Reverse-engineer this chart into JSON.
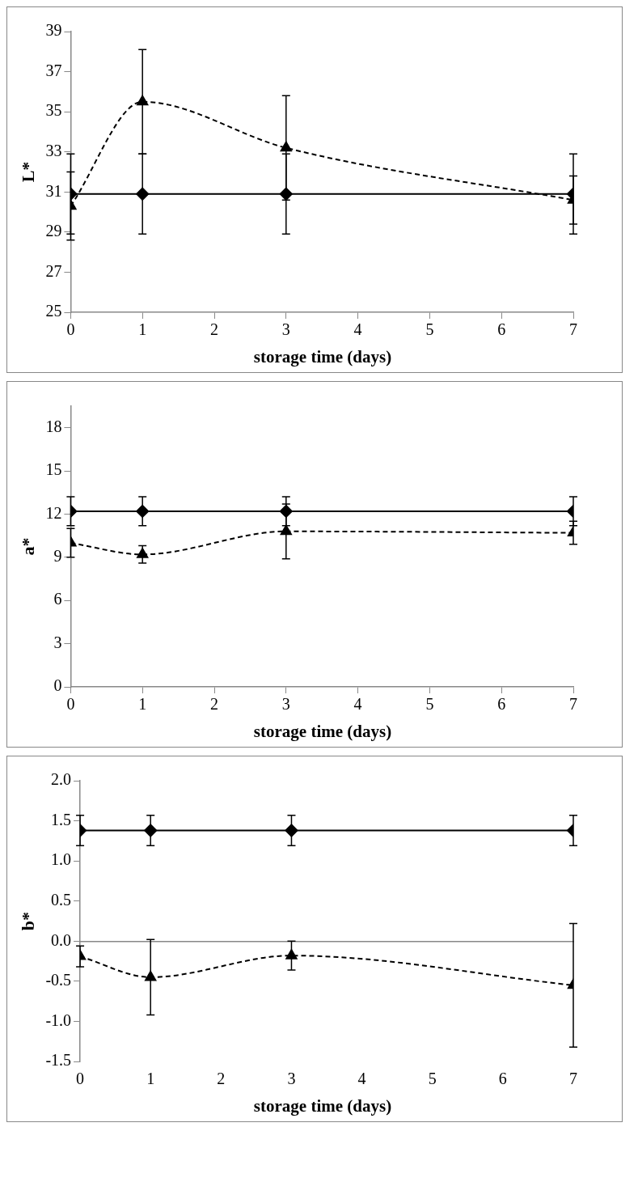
{
  "chart_data": [
    {
      "type": "line",
      "x": [
        0,
        1,
        3,
        7
      ],
      "xlabel": "storage time (days)",
      "ylabel": "L*",
      "xlim": [
        0,
        7
      ],
      "xticks": [
        0,
        1,
        2,
        3,
        4,
        5,
        6,
        7
      ],
      "ylim": [
        25,
        39
      ],
      "yticks": [
        25,
        27,
        29,
        31,
        33,
        35,
        37,
        39
      ],
      "grid": false,
      "legend": false,
      "series": [
        {
          "color": "#000000",
          "marker": "diamond",
          "line_style": "solid",
          "values": [
            30.9,
            30.9,
            30.9,
            30.9
          ],
          "errors": [
            2.0,
            2.0,
            2.0,
            2.0
          ]
        },
        {
          "color": "#000000",
          "marker": "triangle",
          "line_style": "dashed",
          "values": [
            30.3,
            35.5,
            33.2,
            30.6
          ],
          "errors": [
            1.7,
            2.6,
            2.6,
            1.2
          ]
        }
      ]
    },
    {
      "type": "line",
      "x": [
        0,
        1,
        3,
        7
      ],
      "xlabel": "storage time (days)",
      "ylabel": "a*",
      "xlim": [
        0,
        7
      ],
      "xticks": [
        0,
        1,
        2,
        3,
        4,
        5,
        6,
        7
      ],
      "ylim": [
        0,
        19.5
      ],
      "yticks": [
        0,
        3,
        6,
        9,
        12,
        15,
        18
      ],
      "grid": false,
      "legend": false,
      "series": [
        {
          "color": "#000000",
          "marker": "diamond",
          "line_style": "solid",
          "values": [
            12.2,
            12.2,
            12.2,
            12.2
          ],
          "errors": [
            1.0,
            1.0,
            1.0,
            1.0
          ]
        },
        {
          "color": "#000000",
          "marker": "triangle",
          "line_style": "dashed",
          "values": [
            10.0,
            9.2,
            10.8,
            10.7
          ],
          "errors": [
            1.0,
            0.6,
            1.9,
            0.8
          ]
        }
      ]
    },
    {
      "type": "line",
      "x": [
        0,
        1,
        3,
        7
      ],
      "xlabel": "storage time (days)",
      "ylabel": "b*",
      "xlim": [
        0,
        7
      ],
      "xticks": [
        0,
        1,
        2,
        3,
        4,
        5,
        6,
        7
      ],
      "ylim": [
        -1.5,
        2.0
      ],
      "yticks": [
        {
          "value": -1.5,
          "label": "-1.5"
        },
        {
          "value": -1.0,
          "label": "-1.0"
        },
        {
          "value": -0.5,
          "label": "-0.5"
        },
        {
          "value": 0,
          "label": "0.0"
        },
        {
          "value": 0.5,
          "label": "0.5"
        },
        {
          "value": 1.0,
          "label": "1.0"
        },
        {
          "value": 1.5,
          "label": "1.5"
        },
        {
          "value": 2.0,
          "label": "2.0"
        }
      ],
      "legend": false,
      "series": [
        {
          "color": "#000000",
          "marker": "diamond",
          "line_style": "solid",
          "values": [
            1.38,
            1.38,
            1.38,
            1.38
          ],
          "errors": [
            0.19,
            0.19,
            0.19,
            0.19
          ]
        },
        {
          "color": "#000000",
          "marker": "triangle",
          "line_style": "dashed",
          "values": [
            -0.19,
            -0.45,
            -0.18,
            -0.55
          ],
          "errors": [
            0.13,
            0.47,
            0.18,
            0.77
          ]
        }
      ]
    }
  ]
}
